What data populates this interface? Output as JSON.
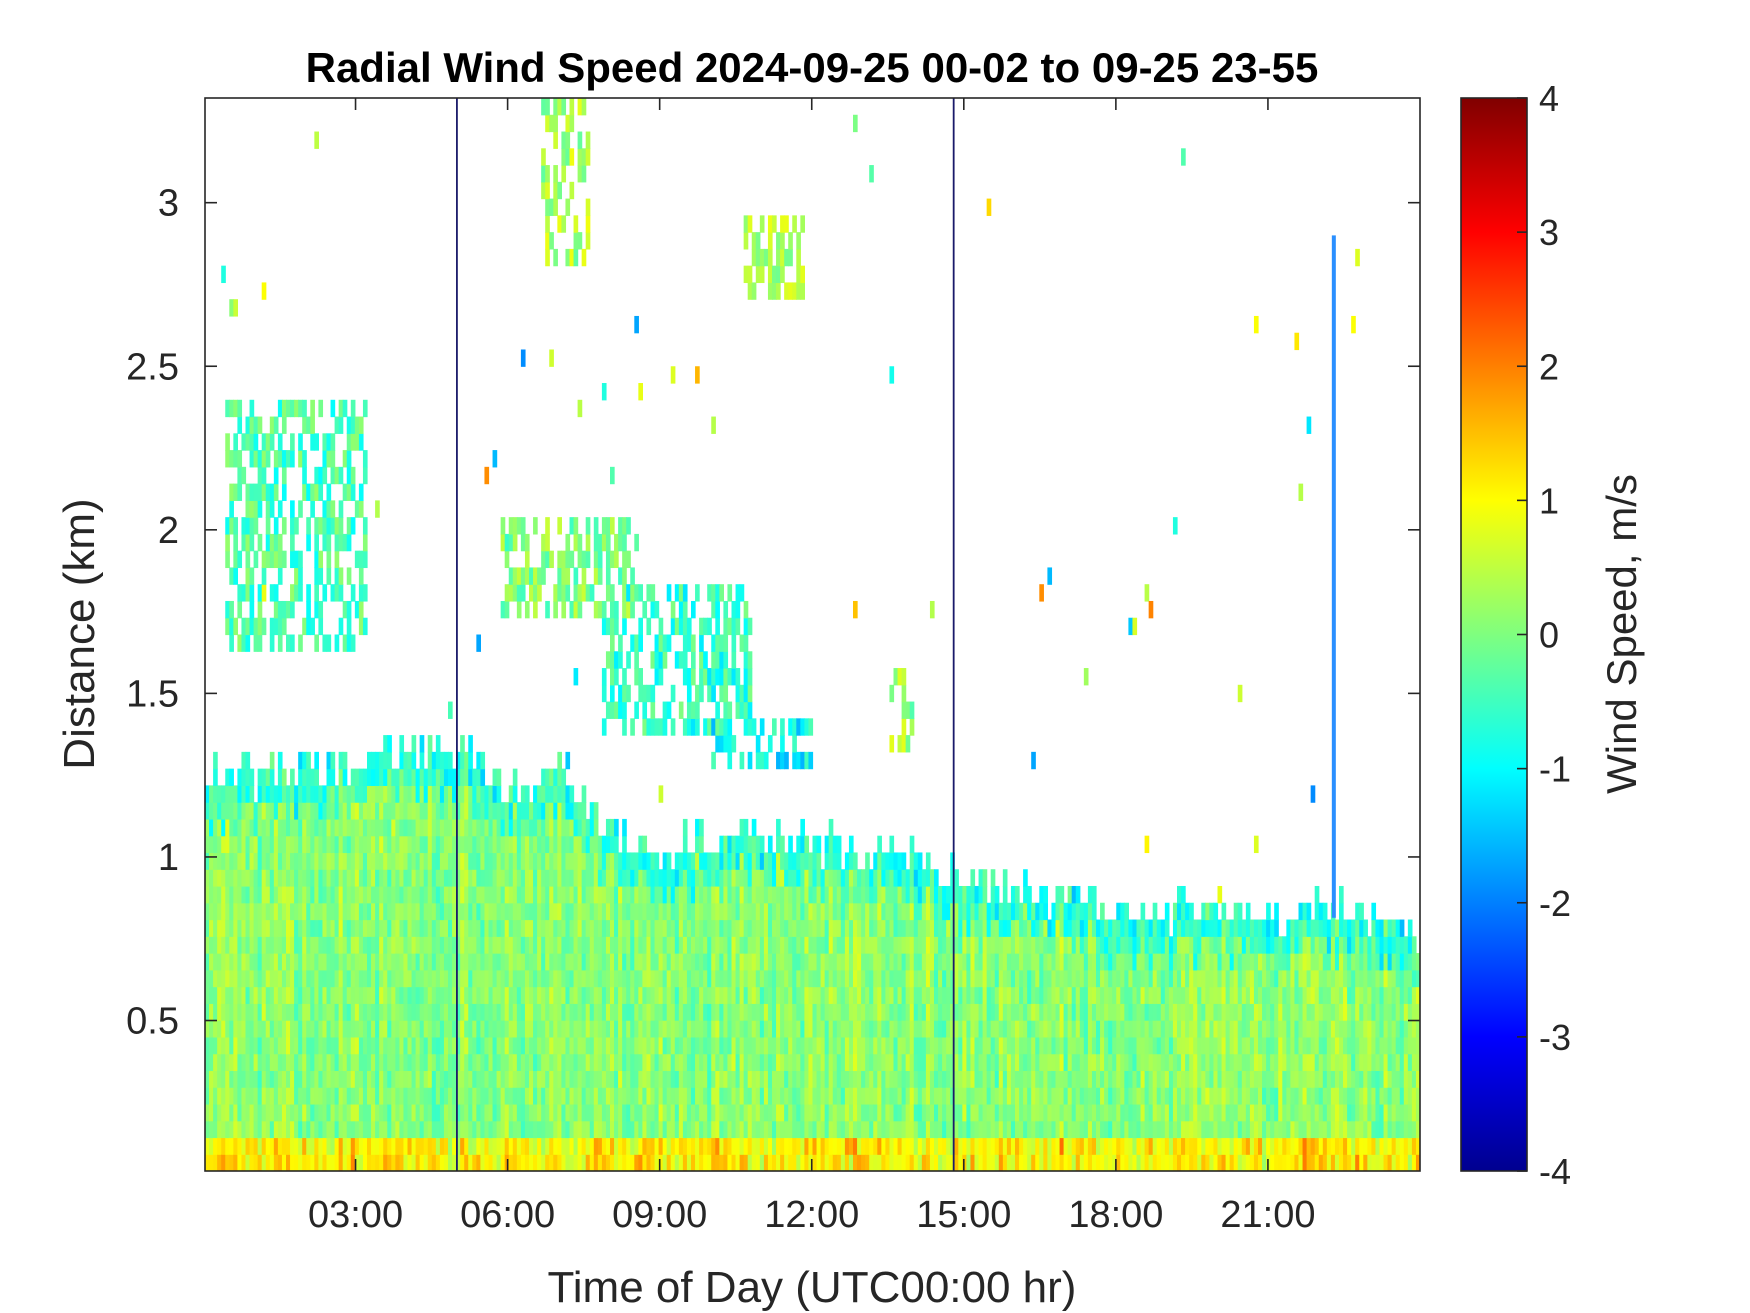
{
  "chart_data": {
    "type": "heatmap",
    "title": "Radial Wind Speed 2024-09-25 00-02 to 09-25 23-55",
    "xlabel": "Time of Day (UTC00:00 hr)",
    "ylabel": "Distance (km)",
    "x_range_hours": [
      0.03,
      24.0
    ],
    "ylim": [
      0.04,
      3.32
    ],
    "x_ticks": [
      {
        "value": 3,
        "label": "03:00"
      },
      {
        "value": 6,
        "label": "06:00"
      },
      {
        "value": 9,
        "label": "09:00"
      },
      {
        "value": 12,
        "label": "12:00"
      },
      {
        "value": 15,
        "label": "15:00"
      },
      {
        "value": 18,
        "label": "18:00"
      },
      {
        "value": 21,
        "label": "21:00"
      }
    ],
    "y_ticks": [
      {
        "value": 0.5,
        "label": "0.5"
      },
      {
        "value": 1,
        "label": "1"
      },
      {
        "value": 1.5,
        "label": "1.5"
      },
      {
        "value": 2,
        "label": "2"
      },
      {
        "value": 2.5,
        "label": "2.5"
      },
      {
        "value": 3,
        "label": "3"
      }
    ],
    "colorbar": {
      "label": "Wind Speed, m/s",
      "range": [
        -4,
        4
      ],
      "colormap": "jet",
      "ticks": [
        {
          "value": 4,
          "label": "4"
        },
        {
          "value": 3,
          "label": "3"
        },
        {
          "value": 2,
          "label": "2"
        },
        {
          "value": 1,
          "label": "1"
        },
        {
          "value": 0,
          "label": "0"
        },
        {
          "value": -1,
          "label": "-1"
        },
        {
          "value": -2,
          "label": "-2"
        },
        {
          "value": -3,
          "label": "-3"
        },
        {
          "value": -4,
          "label": "-4"
        }
      ]
    },
    "boundary_layer_top_km": [
      [
        0.0,
        1.22
      ],
      [
        1.0,
        1.22
      ],
      [
        2.0,
        1.25
      ],
      [
        3.0,
        1.28
      ],
      [
        4.0,
        1.3
      ],
      [
        5.0,
        1.3
      ],
      [
        6.0,
        1.2
      ],
      [
        7.0,
        1.22
      ],
      [
        8.0,
        1.05
      ],
      [
        9.0,
        0.98
      ],
      [
        10.0,
        1.05
      ],
      [
        11.0,
        1.06
      ],
      [
        12.0,
        1.02
      ],
      [
        13.0,
        1.0
      ],
      [
        14.0,
        0.97
      ],
      [
        15.0,
        0.9
      ],
      [
        16.0,
        0.88
      ],
      [
        17.0,
        0.85
      ],
      [
        18.0,
        0.8
      ],
      [
        19.0,
        0.8
      ],
      [
        20.0,
        0.82
      ],
      [
        21.0,
        0.8
      ],
      [
        22.0,
        0.82
      ],
      [
        23.0,
        0.8
      ],
      [
        24.0,
        0.72
      ]
    ],
    "background_speed_m_s": [
      -0.3,
      0.5
    ],
    "cloud_patches": [
      {
        "t": [
          0.4,
          3.2
        ],
        "d": [
          1.6,
          2.35
        ],
        "speed": -0.4
      },
      {
        "t": [
          5.8,
          8.5
        ],
        "d": [
          1.7,
          2.0
        ],
        "speed": 0.0
      },
      {
        "t": [
          7.8,
          10.8
        ],
        "d": [
          1.35,
          1.8
        ],
        "speed": -0.6
      },
      {
        "t": [
          10.0,
          12.0
        ],
        "d": [
          1.25,
          1.4
        ],
        "speed": -1.0
      },
      {
        "t": [
          13.5,
          14.0
        ],
        "d": [
          1.3,
          1.55
        ],
        "speed": 0.2
      },
      {
        "t": [
          6.6,
          7.6
        ],
        "d": [
          2.8,
          3.3
        ],
        "speed": 0.3
      },
      {
        "t": [
          10.6,
          11.8
        ],
        "d": [
          2.7,
          2.95
        ],
        "speed": 0.4
      }
    ],
    "vertical_lines_hours": [
      5.0,
      14.8
    ],
    "spike_hours": [
      22.3
    ]
  }
}
